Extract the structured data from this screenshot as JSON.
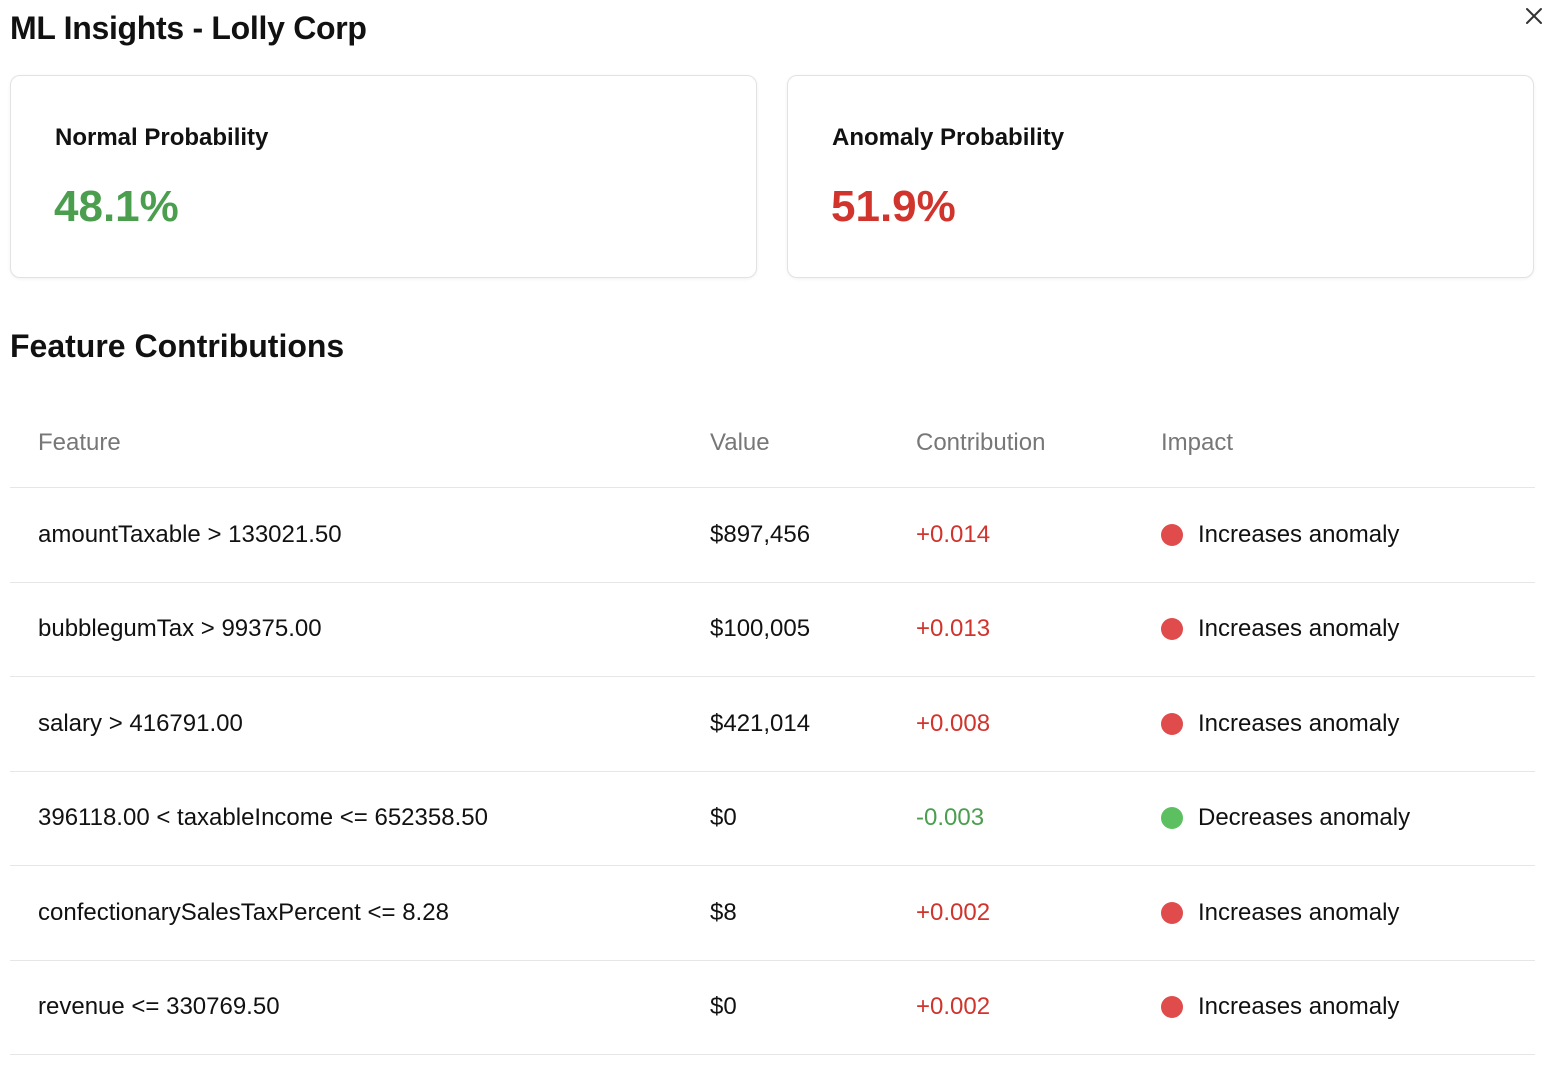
{
  "dialog": {
    "title": "ML Insights - Lolly Corp",
    "close_icon": "close-icon"
  },
  "colors": {
    "positive": "#4a9e4e",
    "negative": "#d0342c",
    "dot_increase": "#e04b4b",
    "dot_decrease": "#5cbf60"
  },
  "cards": {
    "normal": {
      "label": "Normal Probability",
      "value": "48.1%"
    },
    "anomaly": {
      "label": "Anomaly Probability",
      "value": "51.9%"
    }
  },
  "contributions": {
    "title": "Feature Contributions",
    "columns": {
      "feature": "Feature",
      "value": "Value",
      "contribution": "Contribution",
      "impact": "Impact"
    },
    "rows": [
      {
        "feature": "amountTaxable > 133021.50",
        "value": "$897,456",
        "contribution": "+0.014",
        "impact": "Increases anomaly",
        "direction": "increase"
      },
      {
        "feature": "bubblegumTax > 99375.00",
        "value": "$100,005",
        "contribution": "+0.013",
        "impact": "Increases anomaly",
        "direction": "increase"
      },
      {
        "feature": "salary > 416791.00",
        "value": "$421,014",
        "contribution": "+0.008",
        "impact": "Increases anomaly",
        "direction": "increase"
      },
      {
        "feature": "396118.00 < taxableIncome <= 652358.50",
        "value": "$0",
        "contribution": "-0.003",
        "impact": "Decreases anomaly",
        "direction": "decrease"
      },
      {
        "feature": "confectionarySalesTaxPercent <= 8.28",
        "value": "$8",
        "contribution": "+0.002",
        "impact": "Increases anomaly",
        "direction": "increase"
      },
      {
        "feature": "revenue <= 330769.50",
        "value": "$0",
        "contribution": "+0.002",
        "impact": "Increases anomaly",
        "direction": "increase"
      }
    ]
  }
}
